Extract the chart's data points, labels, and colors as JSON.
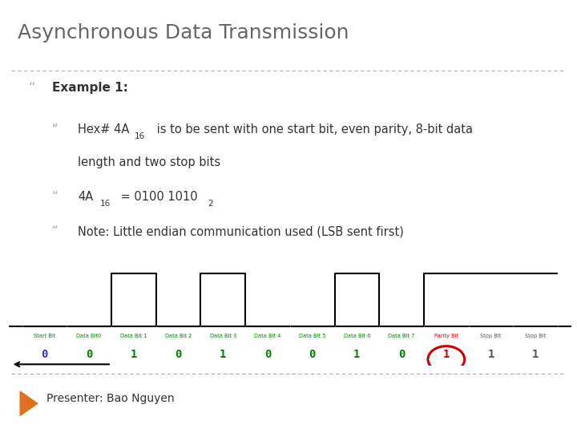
{
  "title": "Asynchronous Data Transmission",
  "title_color": "#666666",
  "bg_color": "#ffffff",
  "text_color": "#333333",
  "green_color": "#008000",
  "red_color": "#cc0000",
  "blue_color": "#3333cc",
  "presenter": "Presenter: Bao Nguyen",
  "segments": [
    {
      "label": "Start Bit",
      "value": "0",
      "bit": 0,
      "color": "blue"
    },
    {
      "label": "Data Bit0",
      "value": "0",
      "bit": 0,
      "color": "green"
    },
    {
      "label": "Data Bit 1",
      "value": "1",
      "bit": 1,
      "color": "green"
    },
    {
      "label": "Data Bit 2",
      "value": "0",
      "bit": 0,
      "color": "green"
    },
    {
      "label": "Data Bit 3",
      "value": "1",
      "bit": 1,
      "color": "green"
    },
    {
      "label": "Data Bit 4",
      "value": "0",
      "bit": 0,
      "color": "green"
    },
    {
      "label": "Data Bit 5",
      "value": "0",
      "bit": 0,
      "color": "green"
    },
    {
      "label": "Data Bit 6",
      "value": "1",
      "bit": 1,
      "color": "green"
    },
    {
      "label": "Data Bit 7",
      "value": "0",
      "bit": 0,
      "color": "green"
    },
    {
      "label": "Parity Bit",
      "value": "1",
      "bit": 1,
      "color": "red"
    },
    {
      "label": "Stop Bit",
      "value": "1",
      "bit": 1,
      "color": "black"
    },
    {
      "label": "Stop Bit",
      "value": "1",
      "bit": 1,
      "color": "black"
    }
  ],
  "waveform_color": "#000000",
  "waveform_lw": 1.5,
  "signal_low": 0.0,
  "signal_high": 1.0
}
